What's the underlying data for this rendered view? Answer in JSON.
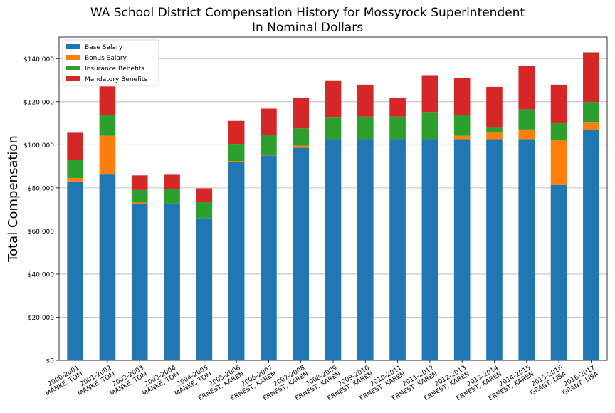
{
  "chart_data": {
    "type": "bar",
    "stacked": true,
    "title": "WA School District Compensation History for Mossyrock Superintendent",
    "subtitle": "In Nominal Dollars",
    "xlabel": "",
    "ylabel": "Total Compensation",
    "ylim": [
      0,
      150000
    ],
    "yticks": [
      0,
      20000,
      40000,
      60000,
      80000,
      100000,
      120000,
      140000
    ],
    "ytick_labels": [
      "$0",
      "$20,000",
      "$40,000",
      "$60,000",
      "$80,000",
      "$100,000",
      "$120,000",
      "$140,000"
    ],
    "grid": "horizontal",
    "legend_position": "top-left",
    "categories": [
      {
        "year": "2000-2001",
        "name": "MANKE, TOM"
      },
      {
        "year": "2001-2002",
        "name": "MANKE, TOM"
      },
      {
        "year": "2002-2003",
        "name": "MANKE, TOM"
      },
      {
        "year": "2003-2004",
        "name": "MANKE, TOM"
      },
      {
        "year": "2004-2005",
        "name": "MANKE, TOM"
      },
      {
        "year": "2005-2006",
        "name": "ERNEST, KAREN"
      },
      {
        "year": "2006-2007",
        "name": "ERNEST, KAREN"
      },
      {
        "year": "2007-2008",
        "name": "ERNEST, KAREN"
      },
      {
        "year": "2008-2009",
        "name": "ERNEST, KAREN"
      },
      {
        "year": "2009-2010",
        "name": "ERNEST, KAREN"
      },
      {
        "year": "2010-2011",
        "name": "ERNEST, KAREN"
      },
      {
        "year": "2011-2012",
        "name": "ERNEST, KAREN"
      },
      {
        "year": "2012-2013",
        "name": "ERNEST, KAREN"
      },
      {
        "year": "2013-2014",
        "name": "ERNEST, KAREN"
      },
      {
        "year": "2014-2015",
        "name": "ERNEST, KAREN"
      },
      {
        "year": "2015-2016",
        "name": "GRANT, LISA"
      },
      {
        "year": "2016-2017",
        "name": "GRANT, LISA"
      }
    ],
    "series": [
      {
        "name": "Base Salary",
        "color": "#1f77b4",
        "values": [
          83000,
          86200,
          72500,
          72800,
          66000,
          92000,
          95000,
          98600,
          102600,
          102600,
          102600,
          102600,
          102600,
          102600,
          102600,
          81300,
          107000
        ]
      },
      {
        "name": "Bonus Salary",
        "color": "#ff7f0e",
        "values": [
          1600,
          18000,
          700,
          0,
          0,
          500,
          500,
          1000,
          0,
          0,
          0,
          0,
          1600,
          3000,
          4500,
          21000,
          3300
        ]
      },
      {
        "name": "Insurance Benefits",
        "color": "#2ca02c",
        "values": [
          8300,
          9700,
          5800,
          6700,
          7500,
          7900,
          8900,
          8000,
          10000,
          10500,
          10500,
          12600,
          9500,
          2300,
          9300,
          7700,
          9600
        ]
      },
      {
        "name": "Mandatory Benefits",
        "color": "#d62728",
        "values": [
          12700,
          13200,
          6800,
          6600,
          6300,
          10700,
          12400,
          14000,
          17000,
          14800,
          8700,
          16800,
          17300,
          19000,
          20300,
          17900,
          23000
        ]
      }
    ]
  }
}
